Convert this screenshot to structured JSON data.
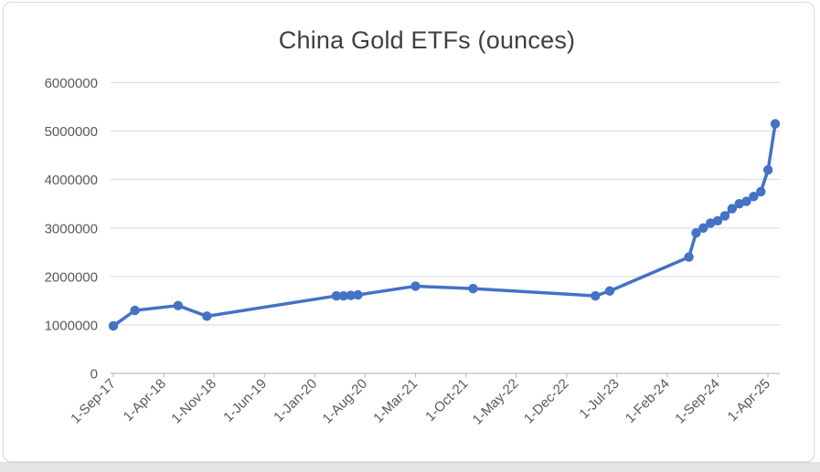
{
  "window": {
    "background": "#ffffff",
    "frame_border_color": "#dcdcde",
    "bottom_strip_color": "#e4e4e6"
  },
  "chart_data": {
    "type": "line",
    "title": "China Gold ETFs (ounces)",
    "title_color": "#3f3f3f",
    "legend_position": "none",
    "grid": "horizontal",
    "gridline_color": "#d9d9d9",
    "axis_line_color": "#bfbfbf",
    "y_axis": {
      "min": 0,
      "max": 6000000,
      "tick_values": [
        0,
        1000000,
        2000000,
        3000000,
        4000000,
        5000000,
        6000000
      ],
      "tick_labels": [
        "0",
        "1000000",
        "2000000",
        "3000000",
        "4000000",
        "5000000",
        "6000000"
      ],
      "label_color": "#595959"
    },
    "x_axis": {
      "unit": "months since Sep-2017",
      "tick_month_indices": [
        0,
        7,
        14,
        21,
        28,
        35,
        42,
        49,
        56,
        63,
        70,
        77,
        84,
        91
      ],
      "tick_labels": [
        "1-Sep-17",
        "1-Apr-18",
        "1-Nov-18",
        "1-Jun-19",
        "1-Jan-20",
        "1-Aug-20",
        "1-Mar-21",
        "1-Oct-21",
        "1-May-22",
        "1-Dec-22",
        "1-Jul-23",
        "1-Feb-24",
        "1-Sep-24",
        "1-Apr-25"
      ],
      "label_color": "#595959",
      "label_rotation_deg": -45
    },
    "series": [
      {
        "name": "China Gold ETFs (ounces)",
        "color": "#4472C4",
        "marker": "circle",
        "points": [
          {
            "date": "1-Sep-17",
            "m": 0,
            "value": 980000
          },
          {
            "date": "1-Dec-17",
            "m": 3,
            "value": 1300000
          },
          {
            "date": "1-Jun-18",
            "m": 9,
            "value": 1400000
          },
          {
            "date": "1-Oct-18",
            "m": 13,
            "value": 1180000
          },
          {
            "date": "1-Apr-20",
            "m": 31,
            "value": 1600000
          },
          {
            "date": "1-May-20",
            "m": 32,
            "value": 1600000
          },
          {
            "date": "1-Jun-20",
            "m": 33,
            "value": 1610000
          },
          {
            "date": "1-Jul-20",
            "m": 34,
            "value": 1620000
          },
          {
            "date": "1-Mar-21",
            "m": 42,
            "value": 1800000
          },
          {
            "date": "1-Nov-21",
            "m": 50,
            "value": 1750000
          },
          {
            "date": "1-Apr-23",
            "m": 67,
            "value": 1600000
          },
          {
            "date": "1-Jun-23",
            "m": 69,
            "value": 1700000
          },
          {
            "date": "1-May-24",
            "m": 80,
            "value": 2400000
          },
          {
            "date": "1-Jun-24",
            "m": 81,
            "value": 2900000
          },
          {
            "date": "1-Jul-24",
            "m": 82,
            "value": 3000000
          },
          {
            "date": "1-Aug-24",
            "m": 83,
            "value": 3100000
          },
          {
            "date": "1-Sep-24",
            "m": 84,
            "value": 3150000
          },
          {
            "date": "1-Oct-24",
            "m": 85,
            "value": 3250000
          },
          {
            "date": "1-Nov-24",
            "m": 86,
            "value": 3400000
          },
          {
            "date": "1-Dec-24",
            "m": 87,
            "value": 3500000
          },
          {
            "date": "1-Jan-25",
            "m": 88,
            "value": 3550000
          },
          {
            "date": "1-Feb-25",
            "m": 89,
            "value": 3650000
          },
          {
            "date": "1-Mar-25",
            "m": 90,
            "value": 3750000
          },
          {
            "date": "1-Apr-25",
            "m": 91,
            "value": 4200000
          },
          {
            "date": "1-May-25",
            "m": 92,
            "value": 5150000
          }
        ]
      }
    ]
  }
}
